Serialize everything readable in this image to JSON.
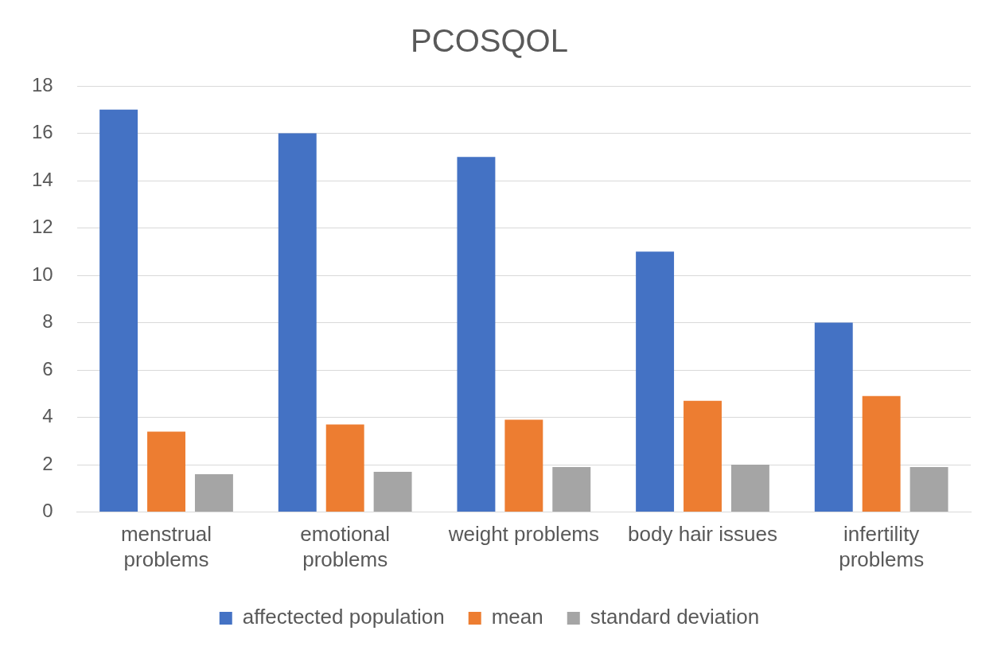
{
  "chart_data": {
    "type": "bar",
    "title": "PCOSQOL",
    "categories": [
      "menstrual problems",
      "emotional problems",
      "weight problems",
      "body hair issues",
      "infertility problems"
    ],
    "series": [
      {
        "name": "affectected population",
        "color": "#4472c4",
        "values": [
          17,
          16,
          15,
          11,
          8
        ]
      },
      {
        "name": "mean",
        "color": "#ed7d31",
        "values": [
          3.4,
          3.7,
          3.9,
          4.7,
          4.9
        ]
      },
      {
        "name": "standard deviation",
        "color": "#a5a5a5",
        "values": [
          1.6,
          1.7,
          1.9,
          2.0,
          1.9
        ]
      }
    ],
    "ylim": [
      0,
      18
    ],
    "yticks": [
      0,
      2,
      4,
      6,
      8,
      10,
      12,
      14,
      16,
      18
    ],
    "grid": "y",
    "legend": "bottom"
  }
}
